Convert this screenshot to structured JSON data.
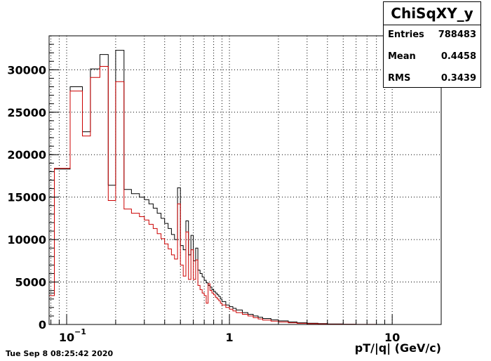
{
  "chart_data": {
    "type": "histogram",
    "title": "ChiSqXY_y",
    "xlabel": "pT/|q| (GeV/c)",
    "ylabel": "",
    "x_scale": "log",
    "xlim": [
      0.078,
      20
    ],
    "ylim": [
      0,
      34000
    ],
    "grid": true,
    "y_ticks": [
      0,
      5000,
      10000,
      15000,
      20000,
      25000,
      30000
    ],
    "x_tick_labels": [
      {
        "value": 0.1,
        "label": "10",
        "sup": "−1"
      },
      {
        "value": 1,
        "label": "1",
        "sup": ""
      },
      {
        "value": 10,
        "label": "10",
        "sup": ""
      }
    ],
    "bin_edges": [
      0.078,
      0.084,
      0.105,
      0.125,
      0.14,
      0.16,
      0.18,
      0.2,
      0.225,
      0.25,
      0.28,
      0.3,
      0.32,
      0.34,
      0.36,
      0.38,
      0.4,
      0.42,
      0.44,
      0.46,
      0.48,
      0.5,
      0.52,
      0.54,
      0.56,
      0.58,
      0.6,
      0.62,
      0.64,
      0.66,
      0.68,
      0.7,
      0.72,
      0.74,
      0.76,
      0.78,
      0.8,
      0.82,
      0.84,
      0.86,
      0.88,
      0.9,
      0.95,
      1.0,
      1.05,
      1.1,
      1.2,
      1.3,
      1.4,
      1.5,
      1.6,
      1.8,
      2.0,
      2.3,
      2.6,
      3.0,
      3.5,
      4.0,
      5.0,
      6.0,
      8.0,
      10.0,
      12.0,
      15.0
    ],
    "series": [
      {
        "name": "",
        "color": "#000000",
        "values": [
          3700,
          18300,
          28000,
          22700,
          30100,
          31800,
          16400,
          32300,
          15900,
          15400,
          15000,
          14700,
          14200,
          13700,
          13100,
          12500,
          11900,
          11300,
          10600,
          10000,
          16100,
          9300,
          8800,
          12200,
          8200,
          10500,
          7500,
          9000,
          6400,
          6000,
          5600,
          5200,
          4900,
          4600,
          4400,
          4100,
          3900,
          3700,
          3500,
          3300,
          3000,
          2700,
          2300,
          2100,
          1900,
          1700,
          1400,
          1200,
          1000,
          850,
          700,
          550,
          420,
          300,
          200,
          140,
          100,
          60,
          30,
          12,
          5,
          2
        ]
      },
      {
        "name": "",
        "color": "#cc0000",
        "values": [
          3400,
          18400,
          27500,
          22200,
          29100,
          30400,
          14600,
          28600,
          13600,
          13100,
          12700,
          12300,
          11800,
          11300,
          10700,
          10100,
          9500,
          8900,
          8200,
          7700,
          14200,
          7000,
          5700,
          10900,
          5300,
          8800,
          5300,
          7600,
          4600,
          4100,
          3700,
          3400,
          2500,
          4800,
          4000,
          3700,
          3500,
          3200,
          3000,
          2800,
          2500,
          2300,
          2000,
          1800,
          1600,
          1400,
          1200,
          1000,
          800,
          650,
          520,
          400,
          300,
          200,
          130,
          90,
          60,
          35,
          18,
          8,
          3,
          1
        ]
      }
    ]
  },
  "stats": {
    "title": "ChiSqXY_y",
    "rows": [
      {
        "label": "Entries",
        "value": "788483"
      },
      {
        "label": "Mean",
        "value": "0.4458"
      },
      {
        "label": "RMS",
        "value": "0.3439"
      }
    ]
  },
  "timestamp": "Tue Sep  8 08:25:42 2020"
}
